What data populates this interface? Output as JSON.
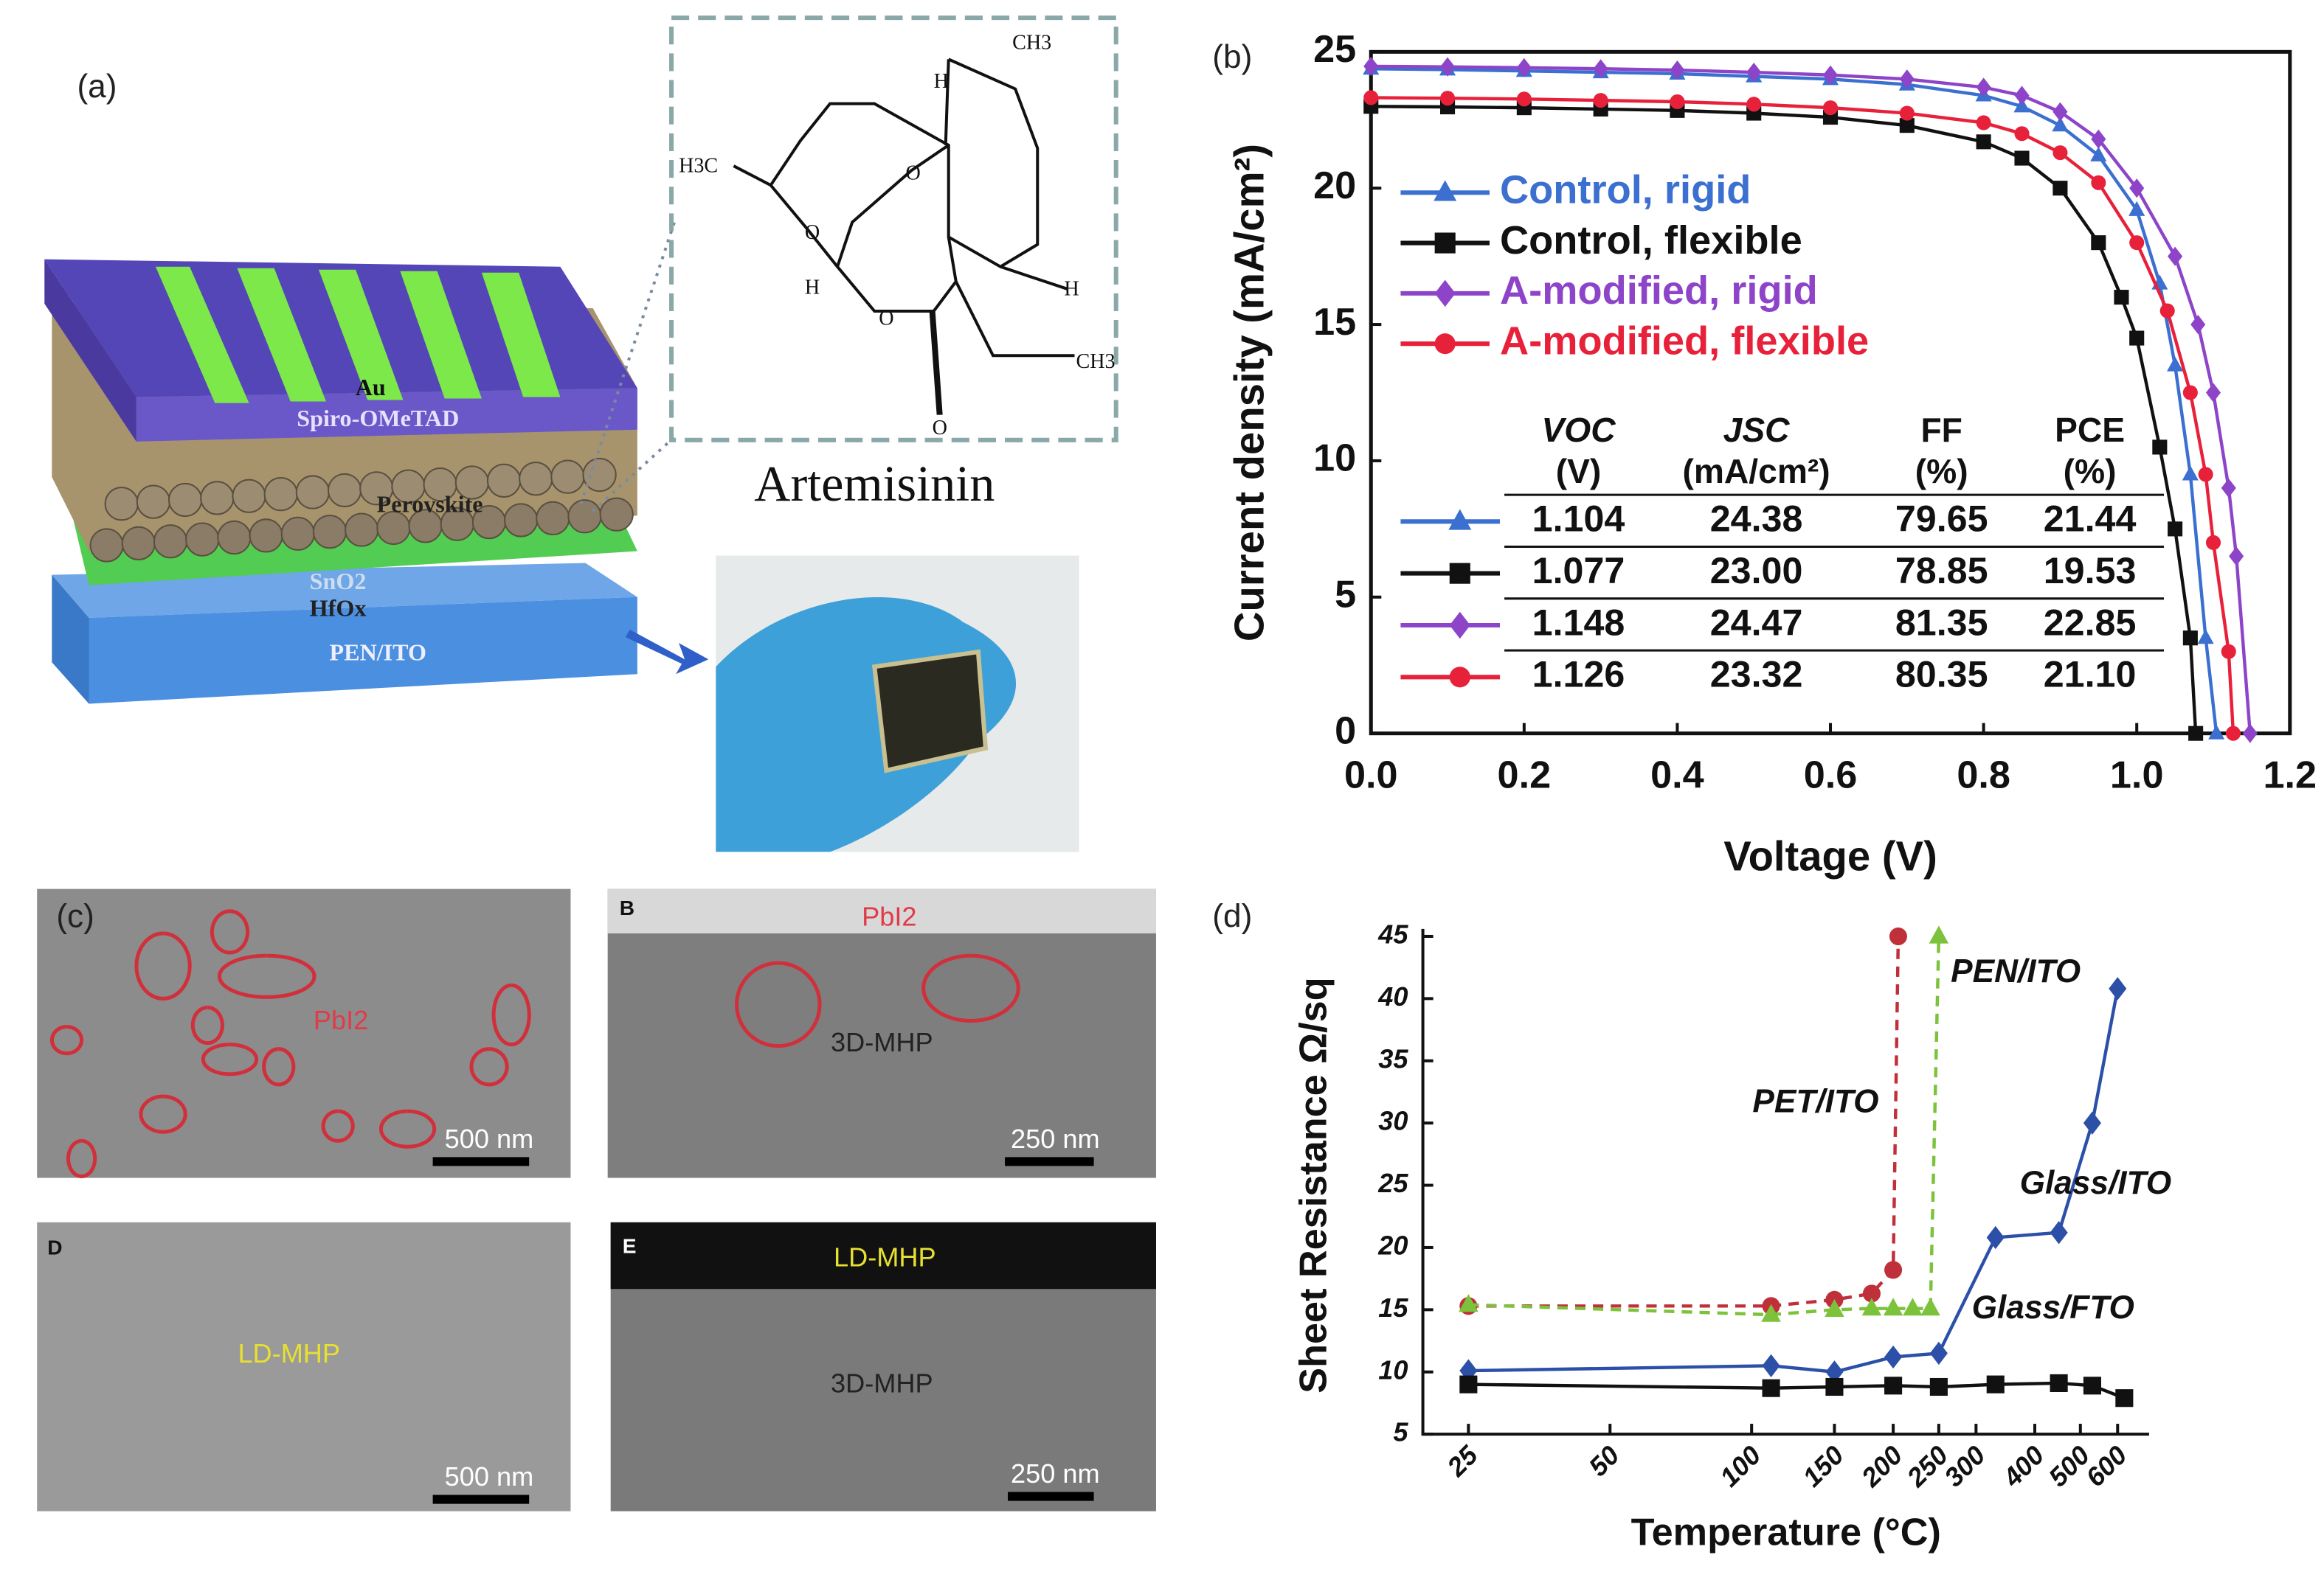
{
  "panels": {
    "a": "(a)",
    "b": "(b)",
    "c": "(c)",
    "d": "(d)"
  },
  "diagram_a": {
    "layers": [
      "Au",
      "Spiro-OMeTAD",
      "Perovskite",
      "SnO2",
      "HfOx",
      "PEN/ITO"
    ],
    "molecule_name": "Artemisinin",
    "atom_labels": [
      "CH3",
      "H",
      "H3C",
      "O",
      "O",
      "H",
      "H",
      "O",
      "CH3",
      "O"
    ]
  },
  "micrographs": {
    "panel_letters": [
      "B",
      "D",
      "E"
    ],
    "labels": [
      "PbI2",
      "PbI2",
      "3D-MHP",
      "3D-MHP",
      "LD-MHP",
      "LD-MHP"
    ],
    "scale_bars": [
      "500 nm",
      "250 nm",
      "500 nm",
      "250 nm"
    ]
  },
  "chart_data": [
    {
      "type": "line",
      "xlabel": "Voltage (V)",
      "ylabel": "Current density (mA/cm²)",
      "xlim": [
        0,
        1.2
      ],
      "ylim": [
        0,
        25
      ],
      "xticks": [
        {
          "value": 0,
          "label": "0.0"
        },
        0.2,
        0.4,
        0.6,
        0.8,
        {
          "value": 1,
          "label": "1.0"
        },
        1.2
      ],
      "yticks": [
        0,
        5,
        10,
        15,
        20,
        25
      ],
      "frame": true,
      "legend": "upper left",
      "series": [
        {
          "name": "Control, rigid",
          "color": "#3b6fd0",
          "marker": "triangle",
          "dashed": false,
          "x": [
            0,
            0.1,
            0.2,
            0.3,
            0.4,
            0.5,
            0.6,
            0.7,
            0.8,
            0.85,
            0.9,
            0.95,
            1.0,
            1.03,
            1.05,
            1.07,
            1.09,
            1.104
          ],
          "values": [
            24.38,
            24.35,
            24.3,
            24.25,
            24.2,
            24.1,
            24.0,
            23.8,
            23.4,
            23.0,
            22.3,
            21.2,
            19.2,
            16.5,
            13.5,
            9.5,
            3.5,
            0
          ]
        },
        {
          "name": "Control, flexible",
          "color": "#111111",
          "marker": "square",
          "dashed": false,
          "x": [
            0,
            0.1,
            0.2,
            0.3,
            0.4,
            0.5,
            0.6,
            0.7,
            0.8,
            0.85,
            0.9,
            0.95,
            0.98,
            1.0,
            1.03,
            1.05,
            1.07,
            1.077
          ],
          "values": [
            23.0,
            22.98,
            22.95,
            22.9,
            22.85,
            22.75,
            22.6,
            22.3,
            21.7,
            21.1,
            20.0,
            18.0,
            16.0,
            14.5,
            10.5,
            7.5,
            3.5,
            0
          ]
        },
        {
          "name": "A-modified, rigid",
          "color": "#8e44c8",
          "marker": "diamond",
          "dashed": false,
          "x": [
            0,
            0.1,
            0.2,
            0.3,
            0.4,
            0.5,
            0.6,
            0.7,
            0.8,
            0.85,
            0.9,
            0.95,
            1.0,
            1.05,
            1.08,
            1.1,
            1.12,
            1.13,
            1.148
          ],
          "values": [
            24.47,
            24.45,
            24.42,
            24.38,
            24.33,
            24.25,
            24.15,
            24.0,
            23.7,
            23.4,
            22.8,
            21.8,
            20.0,
            17.5,
            15.0,
            12.5,
            9.0,
            6.5,
            0
          ]
        },
        {
          "name": "A-modified, flexible",
          "color": "#e8213a",
          "marker": "circle",
          "dashed": false,
          "x": [
            0,
            0.1,
            0.2,
            0.3,
            0.4,
            0.5,
            0.6,
            0.7,
            0.8,
            0.85,
            0.9,
            0.95,
            1.0,
            1.04,
            1.07,
            1.09,
            1.1,
            1.12,
            1.126
          ],
          "values": [
            23.32,
            23.3,
            23.27,
            23.22,
            23.17,
            23.08,
            22.95,
            22.75,
            22.4,
            22.0,
            21.3,
            20.2,
            18.0,
            15.5,
            12.5,
            9.5,
            7.0,
            3.0,
            0
          ]
        }
      ],
      "table": {
        "columns": [
          {
            "name": "VOC",
            "unit": "(V)"
          },
          {
            "name": "JSC",
            "unit": "(mA/cm²)"
          },
          {
            "name": "FF",
            "unit": "(%)"
          },
          {
            "name": "PCE",
            "unit": "(%)"
          }
        ],
        "rows": [
          [
            "1.104",
            "24.38",
            "79.65",
            "21.44"
          ],
          [
            "1.077",
            "23.00",
            "78.85",
            "19.53"
          ],
          [
            "1.148",
            "24.47",
            "81.35",
            "22.85"
          ],
          [
            "1.126",
            "23.32",
            "80.35",
            "21.10"
          ]
        ]
      }
    },
    {
      "type": "line",
      "xlabel": "Temperature (°C)",
      "ylabel": "Sheet Resistance Ω/sq",
      "xscale": "log",
      "xlim": [
        20,
        700
      ],
      "ylim": [
        5,
        45
      ],
      "xticks": [
        25,
        50,
        100,
        150,
        200,
        250,
        300,
        400,
        500,
        600
      ],
      "yticks": [
        5,
        10,
        15,
        20,
        25,
        30,
        35,
        40,
        45
      ],
      "frame": false,
      "legend": "inline",
      "series": [
        {
          "name": "Glass/ITO",
          "color": "#2c4fa8",
          "marker": "diamond",
          "dashed": false,
          "x": [
            25,
            110,
            150,
            200,
            250,
            330,
            450,
            530,
            600
          ],
          "values": [
            10.1,
            10.5,
            10.0,
            11.2,
            11.5,
            20.8,
            21.2,
            30.0,
            40.8
          ]
        },
        {
          "name": "Glass/FTO",
          "color": "#111111",
          "marker": "square",
          "dashed": false,
          "x": [
            25,
            110,
            150,
            200,
            250,
            330,
            450,
            530,
            620
          ],
          "values": [
            9.0,
            8.7,
            8.8,
            8.9,
            8.8,
            9.0,
            9.1,
            8.9,
            7.9
          ]
        },
        {
          "name": "PET/ITO",
          "color": "#c0303a",
          "marker": "circle",
          "dashed": true,
          "x": [
            25,
            110,
            150,
            180,
            200,
            205
          ],
          "values": [
            15.3,
            15.3,
            15.8,
            16.3,
            18.2,
            45
          ]
        },
        {
          "name": "PEN/ITO",
          "color": "#7cc23a",
          "marker": "triangle",
          "dashed": true,
          "x": [
            25,
            110,
            150,
            180,
            200,
            220,
            240,
            250
          ],
          "values": [
            15.4,
            14.6,
            15.0,
            15.1,
            15.1,
            15.1,
            15.1,
            45
          ]
        }
      ]
    }
  ]
}
